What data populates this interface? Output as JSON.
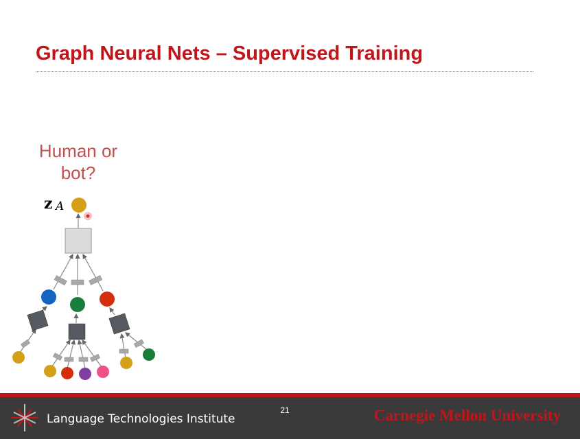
{
  "slide": {
    "title": "Graph Neural Nets – Supervised Training",
    "question_line1": "Human or",
    "question_line2": "bot?",
    "page_number": "21"
  },
  "diagram": {
    "node_label_main": "z",
    "node_label_sub": "A"
  },
  "footer": {
    "institute": "Language Technologies Institute",
    "university": "Carnegie Mellon University"
  },
  "colors": {
    "title_red": "#c0151b",
    "question_red": "#c0504d",
    "gold": "#d4a017",
    "blue": "#1565c0",
    "green": "#1b7d3a",
    "red": "#d32f0f",
    "purple": "#7e3fa0",
    "pink": "#f0508a",
    "footer_bg": "#3a3a3a"
  }
}
